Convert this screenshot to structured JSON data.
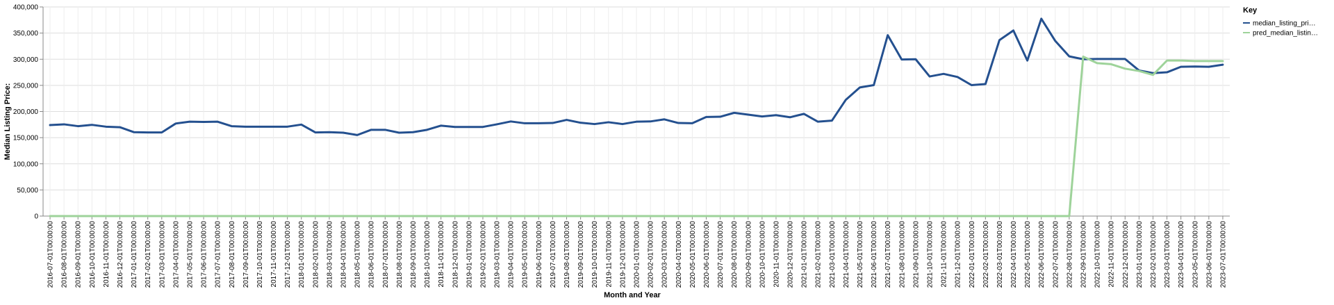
{
  "chart_data": {
    "type": "line",
    "title": "",
    "xlabel": "Month and Year",
    "ylabel": "Median Listing Price:",
    "ylim": [
      0,
      400000
    ],
    "y_ticks": [
      "0",
      "50,000",
      "100,000",
      "150,000",
      "200,000",
      "250,000",
      "300,000",
      "350,000",
      "400,000"
    ],
    "grid": true,
    "legend_position": "top-right",
    "legend_title": "Key",
    "x": [
      "2016-07-01T00:00:00",
      "2016-08-01T00:00:00",
      "2016-09-01T00:00:00",
      "2016-10-01T00:00:00",
      "2016-11-01T00:00:00",
      "2016-12-01T00:00:00",
      "2017-01-01T00:00:00",
      "2017-02-01T00:00:00",
      "2017-03-01T00:00:00",
      "2017-04-01T00:00:00",
      "2017-05-01T00:00:00",
      "2017-06-01T00:00:00",
      "2017-07-01T00:00:00",
      "2017-08-01T00:00:00",
      "2017-09-01T00:00:00",
      "2017-10-01T00:00:00",
      "2017-11-01T00:00:00",
      "2017-12-01T00:00:00",
      "2018-01-01T00:00:00",
      "2018-02-01T00:00:00",
      "2018-03-01T00:00:00",
      "2018-04-01T00:00:00",
      "2018-05-01T00:00:00",
      "2018-06-01T00:00:00",
      "2018-07-01T00:00:00",
      "2018-08-01T00:00:00",
      "2018-09-01T00:00:00",
      "2018-10-01T00:00:00",
      "2018-11-01T00:00:00",
      "2018-12-01T00:00:00",
      "2019-01-01T00:00:00",
      "2019-02-01T00:00:00",
      "2019-03-01T00:00:00",
      "2019-04-01T00:00:00",
      "2019-05-01T00:00:00",
      "2019-06-01T00:00:00",
      "2019-07-01T00:00:00",
      "2019-08-01T00:00:00",
      "2019-09-01T00:00:00",
      "2019-10-01T00:00:00",
      "2019-11-01T00:00:00",
      "2019-12-01T00:00:00",
      "2020-01-01T00:00:00",
      "2020-02-01T00:00:00",
      "2020-03-01T00:00:00",
      "2020-04-01T00:00:00",
      "2020-05-01T00:00:00",
      "2020-06-01T00:00:00",
      "2020-07-01T00:00:00",
      "2020-08-01T00:00:00",
      "2020-09-01T00:00:00",
      "2020-10-01T00:00:00",
      "2020-11-01T00:00:00",
      "2020-12-01T00:00:00",
      "2021-01-01T00:00:00",
      "2021-02-01T00:00:00",
      "2021-03-01T00:00:00",
      "2021-04-01T00:00:00",
      "2021-05-01T00:00:00",
      "2021-06-01T00:00:00",
      "2021-07-01T00:00:00",
      "2021-08-01T00:00:00",
      "2021-09-01T00:00:00",
      "2021-10-01T00:00:00",
      "2021-11-01T00:00:00",
      "2021-12-01T00:00:00",
      "2022-01-01T00:00:00",
      "2022-02-01T00:00:00",
      "2022-03-01T00:00:00",
      "2022-04-01T00:00:00",
      "2022-05-01T00:00:00",
      "2022-06-01T00:00:00",
      "2022-07-01T00:00:00",
      "2022-08-01T00:00:00",
      "2022-09-01T00:00:00",
      "2022-10-01T00:00:00",
      "2022-11-01T00:00:00",
      "2022-12-01T00:00:00",
      "2023-01-01T00:00:00",
      "2023-02-01T00:00:00",
      "2023-03-01T00:00:00",
      "2023-04-01T00:00:00",
      "2023-05-01T00:00:00",
      "2023-06-01T00:00:00",
      "2023-07-01T00:00:00"
    ],
    "series": [
      {
        "name": "median_listing_pri…",
        "color": "#24508f",
        "values": [
          174000,
          175500,
          172000,
          174500,
          171000,
          170000,
          160500,
          160000,
          160000,
          177000,
          180500,
          180000,
          180500,
          172000,
          171000,
          171000,
          171000,
          171000,
          175000,
          160000,
          160500,
          159500,
          155000,
          165000,
          165000,
          159500,
          160500,
          165000,
          173000,
          170500,
          170500,
          170500,
          175500,
          181000,
          177500,
          177500,
          178000,
          184000,
          178500,
          176000,
          179500,
          176000,
          180500,
          181000,
          185000,
          178000,
          177500,
          189500,
          190000,
          197500,
          194000,
          190500,
          193000,
          189000,
          195500,
          180500,
          182500,
          222500,
          246000,
          250500,
          346000,
          299500,
          300000,
          267000,
          272000,
          266000,
          250500,
          252500,
          336500,
          355000,
          297500,
          377500,
          335000,
          305500,
          300000,
          300500,
          300500,
          300500,
          278500,
          273500,
          275000,
          285500,
          286000,
          285500,
          289500
        ]
      },
      {
        "name": "pred_median_listin…",
        "color": "#9ed39a",
        "values": [
          0,
          0,
          0,
          0,
          0,
          0,
          0,
          0,
          0,
          0,
          0,
          0,
          0,
          0,
          0,
          0,
          0,
          0,
          0,
          0,
          0,
          0,
          0,
          0,
          0,
          0,
          0,
          0,
          0,
          0,
          0,
          0,
          0,
          0,
          0,
          0,
          0,
          0,
          0,
          0,
          0,
          0,
          0,
          0,
          0,
          0,
          0,
          0,
          0,
          0,
          0,
          0,
          0,
          0,
          0,
          0,
          0,
          0,
          0,
          0,
          0,
          0,
          0,
          0,
          0,
          0,
          0,
          0,
          0,
          0,
          0,
          0,
          0,
          0,
          305000,
          292500,
          290500,
          282000,
          277500,
          270000,
          297500,
          297500,
          296500,
          296500,
          296500
        ]
      }
    ]
  }
}
